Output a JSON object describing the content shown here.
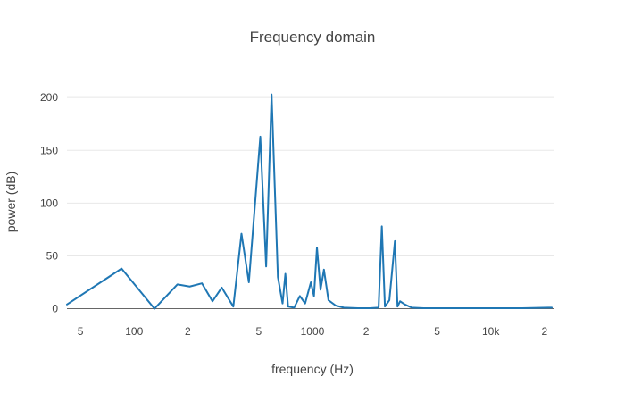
{
  "chart_data": {
    "type": "line",
    "title": "Frequency domain",
    "xlabel": "frequency (Hz)",
    "ylabel": "power (dB)",
    "xscale": "log",
    "xlim": [
      42,
      22500
    ],
    "ylim": [
      -8,
      212
    ],
    "yticks": [
      0,
      50,
      100,
      150,
      200
    ],
    "xticks": [
      {
        "v": 50,
        "label": "5"
      },
      {
        "v": 100,
        "label": "100"
      },
      {
        "v": 200,
        "label": "2"
      },
      {
        "v": 500,
        "label": "5"
      },
      {
        "v": 1000,
        "label": "1000"
      },
      {
        "v": 2000,
        "label": "2"
      },
      {
        "v": 5000,
        "label": "5"
      },
      {
        "v": 10000,
        "label": "10k"
      },
      {
        "v": 20000,
        "label": "2"
      }
    ],
    "grid": true,
    "legend": "none",
    "line_color": "#1f77b4",
    "grid_color": "#e8e8e8",
    "zeroline_color": "#666666",
    "text_color": "#444444",
    "series": [
      {
        "name": "power",
        "x": [
          42,
          85,
          130,
          175,
          205,
          240,
          275,
          310,
          360,
          400,
          440,
          510,
          550,
          590,
          640,
          680,
          705,
          730,
          790,
          850,
          910,
          980,
          1020,
          1060,
          1110,
          1160,
          1230,
          1350,
          1500,
          1800,
          2100,
          2350,
          2450,
          2550,
          2700,
          2900,
          3000,
          3100,
          3300,
          3600,
          4200,
          5000,
          7000,
          10000,
          15000,
          21000,
          22000
        ],
        "y": [
          4,
          38,
          0,
          23,
          21,
          24,
          7,
          20,
          2,
          71,
          25,
          163,
          40,
          203,
          30,
          5,
          33,
          2,
          1,
          12,
          5,
          25,
          12,
          58,
          18,
          37,
          8,
          3,
          1,
          0.5,
          0.5,
          1,
          78,
          2,
          8,
          64,
          2,
          7,
          4,
          1,
          0.5,
          0.5,
          0.5,
          0.5,
          0.5,
          1,
          1
        ]
      }
    ]
  }
}
